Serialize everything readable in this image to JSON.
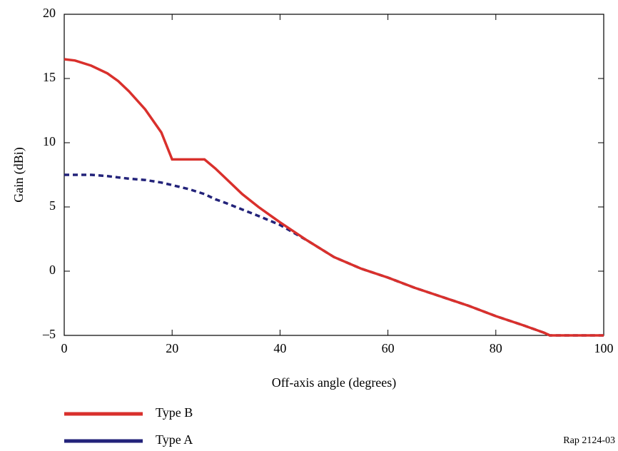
{
  "chart_data": {
    "type": "line",
    "xlabel": "Off-axis angle (degrees)",
    "ylabel": "Gain (dBi)",
    "annotation": "Rap 2124-03",
    "x": [
      0,
      2,
      5,
      8,
      10,
      12,
      15,
      18,
      20,
      23,
      26,
      28,
      30,
      33,
      36,
      40,
      45,
      50,
      55,
      60,
      65,
      70,
      75,
      80,
      85,
      89,
      90,
      100
    ],
    "series": [
      {
        "name": "Type B",
        "color": "#d9302c",
        "dash": false,
        "values": [
          16.5,
          16.4,
          16.0,
          15.4,
          14.8,
          14.0,
          12.6,
          10.8,
          8.7,
          8.7,
          8.7,
          8.0,
          7.2,
          6.0,
          5.0,
          3.8,
          2.4,
          1.1,
          0.2,
          -0.5,
          -1.3,
          -2.0,
          -2.7,
          -3.5,
          -4.2,
          -4.8,
          -5,
          -5
        ]
      },
      {
        "name": "Type A",
        "color": "#23237a",
        "dash": true,
        "values": [
          7.5,
          7.5,
          7.5,
          7.4,
          7.3,
          7.2,
          7.1,
          6.9,
          6.7,
          6.4,
          6.0,
          5.6,
          5.3,
          4.8,
          4.3,
          3.6,
          2.4,
          1.1,
          0.2,
          -0.5,
          -1.3,
          -2.0,
          -2.7,
          -3.5,
          -4.2,
          -4.8,
          -5,
          -5
        ]
      }
    ],
    "xlim": [
      0,
      100
    ],
    "xticks": [
      0,
      20,
      40,
      60,
      80,
      100
    ],
    "ylim": [
      -5,
      20
    ],
    "yticks": [
      {
        "value": -5,
        "label": "–5"
      },
      0,
      5,
      10,
      15,
      20
    ],
    "grid": false
  }
}
